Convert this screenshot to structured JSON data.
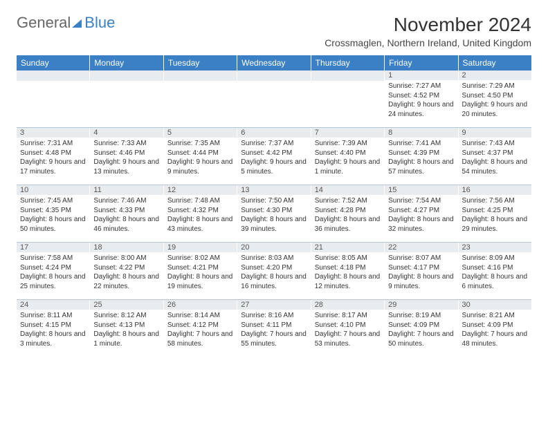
{
  "logo": {
    "general": "General",
    "blue": "Blue"
  },
  "title": "November 2024",
  "location": "Crossmaglen, Northern Ireland, United Kingdom",
  "colors": {
    "header_bg": "#3b7fc4",
    "header_text": "#ffffff",
    "band_bg": "#e8ecef",
    "border": "#b8c4d0",
    "body_text": "#333333"
  },
  "typography": {
    "title_fontsize": 28,
    "location_fontsize": 14,
    "dayheader_fontsize": 12,
    "daynum_fontsize": 11,
    "body_fontsize": 10
  },
  "day_headers": [
    "Sunday",
    "Monday",
    "Tuesday",
    "Wednesday",
    "Thursday",
    "Friday",
    "Saturday"
  ],
  "weeks": [
    [
      {
        "num": "",
        "sunrise": "",
        "sunset": "",
        "daylight": ""
      },
      {
        "num": "",
        "sunrise": "",
        "sunset": "",
        "daylight": ""
      },
      {
        "num": "",
        "sunrise": "",
        "sunset": "",
        "daylight": ""
      },
      {
        "num": "",
        "sunrise": "",
        "sunset": "",
        "daylight": ""
      },
      {
        "num": "",
        "sunrise": "",
        "sunset": "",
        "daylight": ""
      },
      {
        "num": "1",
        "sunrise": "Sunrise: 7:27 AM",
        "sunset": "Sunset: 4:52 PM",
        "daylight": "Daylight: 9 hours and 24 minutes."
      },
      {
        "num": "2",
        "sunrise": "Sunrise: 7:29 AM",
        "sunset": "Sunset: 4:50 PM",
        "daylight": "Daylight: 9 hours and 20 minutes."
      }
    ],
    [
      {
        "num": "3",
        "sunrise": "Sunrise: 7:31 AM",
        "sunset": "Sunset: 4:48 PM",
        "daylight": "Daylight: 9 hours and 17 minutes."
      },
      {
        "num": "4",
        "sunrise": "Sunrise: 7:33 AM",
        "sunset": "Sunset: 4:46 PM",
        "daylight": "Daylight: 9 hours and 13 minutes."
      },
      {
        "num": "5",
        "sunrise": "Sunrise: 7:35 AM",
        "sunset": "Sunset: 4:44 PM",
        "daylight": "Daylight: 9 hours and 9 minutes."
      },
      {
        "num": "6",
        "sunrise": "Sunrise: 7:37 AM",
        "sunset": "Sunset: 4:42 PM",
        "daylight": "Daylight: 9 hours and 5 minutes."
      },
      {
        "num": "7",
        "sunrise": "Sunrise: 7:39 AM",
        "sunset": "Sunset: 4:40 PM",
        "daylight": "Daylight: 9 hours and 1 minute."
      },
      {
        "num": "8",
        "sunrise": "Sunrise: 7:41 AM",
        "sunset": "Sunset: 4:39 PM",
        "daylight": "Daylight: 8 hours and 57 minutes."
      },
      {
        "num": "9",
        "sunrise": "Sunrise: 7:43 AM",
        "sunset": "Sunset: 4:37 PM",
        "daylight": "Daylight: 8 hours and 54 minutes."
      }
    ],
    [
      {
        "num": "10",
        "sunrise": "Sunrise: 7:45 AM",
        "sunset": "Sunset: 4:35 PM",
        "daylight": "Daylight: 8 hours and 50 minutes."
      },
      {
        "num": "11",
        "sunrise": "Sunrise: 7:46 AM",
        "sunset": "Sunset: 4:33 PM",
        "daylight": "Daylight: 8 hours and 46 minutes."
      },
      {
        "num": "12",
        "sunrise": "Sunrise: 7:48 AM",
        "sunset": "Sunset: 4:32 PM",
        "daylight": "Daylight: 8 hours and 43 minutes."
      },
      {
        "num": "13",
        "sunrise": "Sunrise: 7:50 AM",
        "sunset": "Sunset: 4:30 PM",
        "daylight": "Daylight: 8 hours and 39 minutes."
      },
      {
        "num": "14",
        "sunrise": "Sunrise: 7:52 AM",
        "sunset": "Sunset: 4:28 PM",
        "daylight": "Daylight: 8 hours and 36 minutes."
      },
      {
        "num": "15",
        "sunrise": "Sunrise: 7:54 AM",
        "sunset": "Sunset: 4:27 PM",
        "daylight": "Daylight: 8 hours and 32 minutes."
      },
      {
        "num": "16",
        "sunrise": "Sunrise: 7:56 AM",
        "sunset": "Sunset: 4:25 PM",
        "daylight": "Daylight: 8 hours and 29 minutes."
      }
    ],
    [
      {
        "num": "17",
        "sunrise": "Sunrise: 7:58 AM",
        "sunset": "Sunset: 4:24 PM",
        "daylight": "Daylight: 8 hours and 25 minutes."
      },
      {
        "num": "18",
        "sunrise": "Sunrise: 8:00 AM",
        "sunset": "Sunset: 4:22 PM",
        "daylight": "Daylight: 8 hours and 22 minutes."
      },
      {
        "num": "19",
        "sunrise": "Sunrise: 8:02 AM",
        "sunset": "Sunset: 4:21 PM",
        "daylight": "Daylight: 8 hours and 19 minutes."
      },
      {
        "num": "20",
        "sunrise": "Sunrise: 8:03 AM",
        "sunset": "Sunset: 4:20 PM",
        "daylight": "Daylight: 8 hours and 16 minutes."
      },
      {
        "num": "21",
        "sunrise": "Sunrise: 8:05 AM",
        "sunset": "Sunset: 4:18 PM",
        "daylight": "Daylight: 8 hours and 12 minutes."
      },
      {
        "num": "22",
        "sunrise": "Sunrise: 8:07 AM",
        "sunset": "Sunset: 4:17 PM",
        "daylight": "Daylight: 8 hours and 9 minutes."
      },
      {
        "num": "23",
        "sunrise": "Sunrise: 8:09 AM",
        "sunset": "Sunset: 4:16 PM",
        "daylight": "Daylight: 8 hours and 6 minutes."
      }
    ],
    [
      {
        "num": "24",
        "sunrise": "Sunrise: 8:11 AM",
        "sunset": "Sunset: 4:15 PM",
        "daylight": "Daylight: 8 hours and 3 minutes."
      },
      {
        "num": "25",
        "sunrise": "Sunrise: 8:12 AM",
        "sunset": "Sunset: 4:13 PM",
        "daylight": "Daylight: 8 hours and 1 minute."
      },
      {
        "num": "26",
        "sunrise": "Sunrise: 8:14 AM",
        "sunset": "Sunset: 4:12 PM",
        "daylight": "Daylight: 7 hours and 58 minutes."
      },
      {
        "num": "27",
        "sunrise": "Sunrise: 8:16 AM",
        "sunset": "Sunset: 4:11 PM",
        "daylight": "Daylight: 7 hours and 55 minutes."
      },
      {
        "num": "28",
        "sunrise": "Sunrise: 8:17 AM",
        "sunset": "Sunset: 4:10 PM",
        "daylight": "Daylight: 7 hours and 53 minutes."
      },
      {
        "num": "29",
        "sunrise": "Sunrise: 8:19 AM",
        "sunset": "Sunset: 4:09 PM",
        "daylight": "Daylight: 7 hours and 50 minutes."
      },
      {
        "num": "30",
        "sunrise": "Sunrise: 8:21 AM",
        "sunset": "Sunset: 4:09 PM",
        "daylight": "Daylight: 7 hours and 48 minutes."
      }
    ]
  ]
}
